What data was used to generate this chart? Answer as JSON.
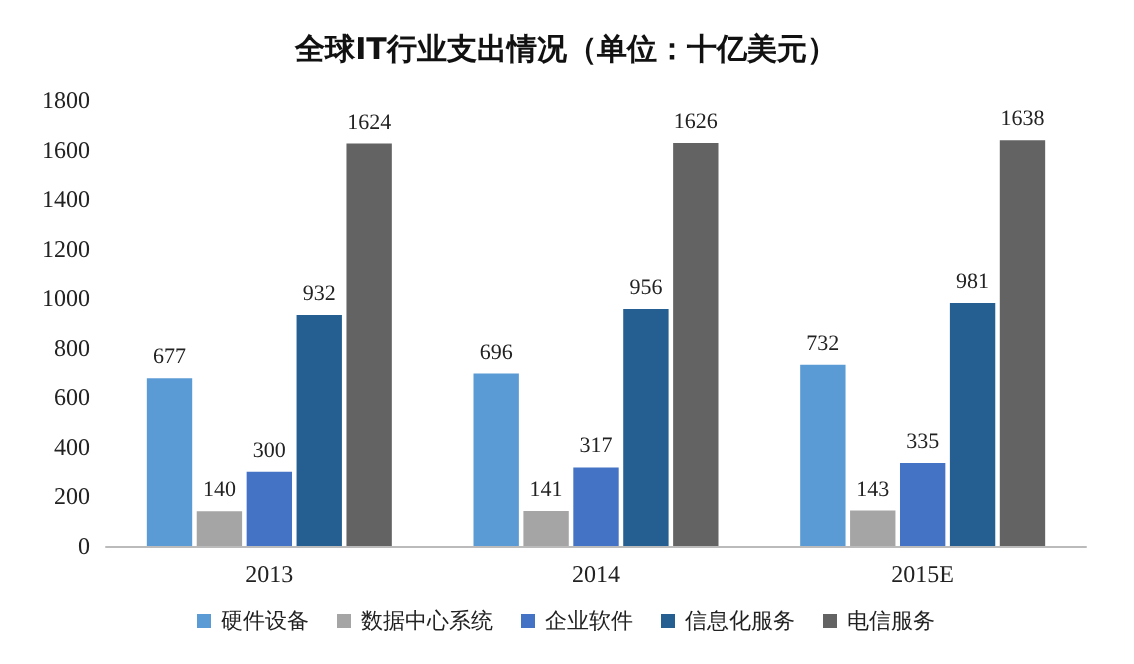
{
  "chart_data": {
    "type": "bar",
    "title": "全球IT行业支出情况（单位：十亿美元）",
    "categories": [
      "2013",
      "2014",
      "2015E"
    ],
    "series": [
      {
        "name": "硬件设备",
        "color": "#5b9bd5",
        "values": [
          677,
          696,
          732
        ]
      },
      {
        "name": "数据中心系统",
        "color": "#a5a5a5",
        "values": [
          140,
          141,
          143
        ]
      },
      {
        "name": "企业软件",
        "color": "#4472c4",
        "values": [
          300,
          317,
          335
        ]
      },
      {
        "name": "信息化服务",
        "color": "#255e91",
        "values": [
          932,
          956,
          981
        ]
      },
      {
        "name": "电信服务",
        "color": "#636363",
        "values": [
          1624,
          1626,
          1638
        ]
      }
    ],
    "ylim": [
      0,
      1800
    ],
    "yticks": [
      0,
      200,
      400,
      600,
      800,
      1000,
      1200,
      1400,
      1600,
      1800
    ],
    "grid": false,
    "legend": "bottom",
    "data_labels": true
  }
}
